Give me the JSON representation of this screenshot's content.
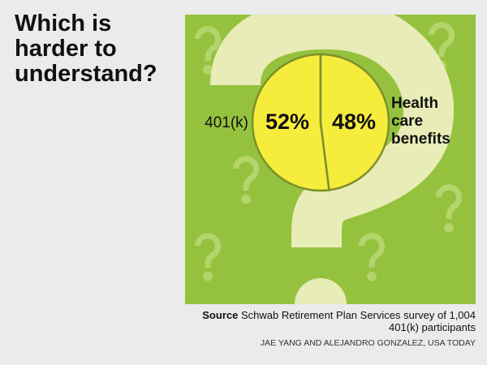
{
  "chart_data": {
    "type": "pie",
    "title": "Which is harder to understand?",
    "categories": [
      "401(k)",
      "Health care benefits"
    ],
    "values": [
      52,
      48
    ],
    "value_labels": [
      "52%",
      "48%"
    ],
    "color": "#f6ec3c",
    "background_color": "#95c23e",
    "source_label": "Source",
    "source": "Schwab Retirement Plan Services survey of 1,004 401(k) participants",
    "credit": "JAE YANG AND ALEJANDRO GONZALEZ, USA TODAY"
  }
}
